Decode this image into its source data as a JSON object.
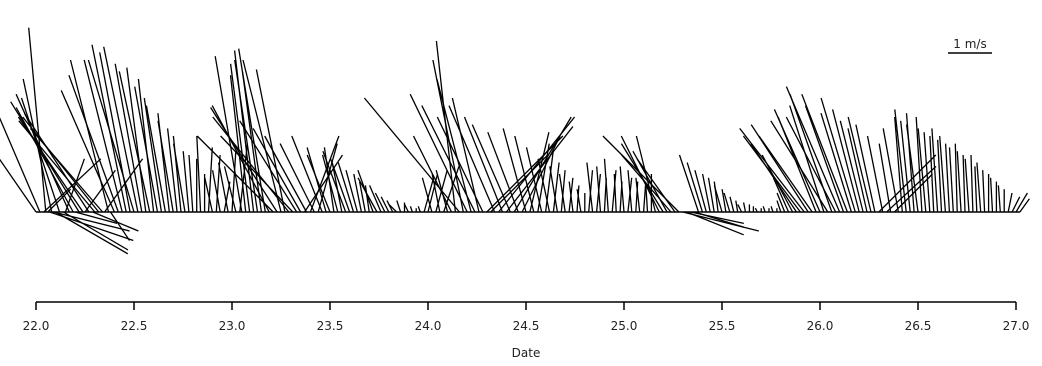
{
  "chart_data": {
    "type": "stick-plot",
    "xlabel": "Date",
    "x_ticks": [
      "22.0",
      "22.5",
      "23.0",
      "23.5",
      "24.0",
      "24.5",
      "25.0",
      "25.5",
      "26.0",
      "26.5",
      "27.0"
    ],
    "xlim": [
      22.0,
      27.05
    ],
    "scale": {
      "label": "1 m/s",
      "value_mps": 1
    },
    "colors": {
      "stick": "#000000",
      "text": "#222222",
      "background": "#ffffff"
    },
    "vectors": [
      {
        "t": 22.0,
        "u": -0.38,
        "v": 0.55
      },
      {
        "t": 22.02,
        "u": -0.3,
        "v": 0.7
      },
      {
        "t": 22.04,
        "u": 0.3,
        "v": 0.28
      },
      {
        "t": 22.05,
        "u": -0.09,
        "v": 0.97
      },
      {
        "t": 22.06,
        "u": 0.12,
        "v": 0.12
      },
      {
        "t": 22.07,
        "u": 0.44,
        "v": -0.15
      },
      {
        "t": 22.08,
        "u": -0.15,
        "v": 0.7
      },
      {
        "t": 22.09,
        "u": 0.4,
        "v": -0.1
      },
      {
        "t": 22.1,
        "u": 0.38,
        "v": -0.22
      },
      {
        "t": 22.12,
        "u": -0.2,
        "v": 0.6
      },
      {
        "t": 22.14,
        "u": 0.34,
        "v": -0.2
      },
      {
        "t": 22.15,
        "u": 0.1,
        "v": 0.28
      },
      {
        "t": 22.17,
        "u": -0.28,
        "v": 0.62
      },
      {
        "t": 22.19,
        "u": -0.3,
        "v": 0.55
      },
      {
        "t": 22.2,
        "u": 0.22,
        "v": -0.06
      },
      {
        "t": 22.22,
        "u": -0.36,
        "v": 0.58
      },
      {
        "t": 22.24,
        "u": -0.34,
        "v": 0.5
      },
      {
        "t": 22.25,
        "u": 0.16,
        "v": 0.22
      },
      {
        "t": 22.27,
        "u": -0.34,
        "v": 0.52
      },
      {
        "t": 22.29,
        "u": 0.24,
        "v": -0.1
      },
      {
        "t": 22.3,
        "u": -0.4,
        "v": 0.48
      },
      {
        "t": 22.32,
        "u": -0.4,
        "v": 0.5
      },
      {
        "t": 22.34,
        "u": -0.38,
        "v": 0.44
      },
      {
        "t": 22.35,
        "u": 0.2,
        "v": 0.28
      },
      {
        "t": 22.37,
        "u": -0.2,
        "v": 0.8
      },
      {
        "t": 22.38,
        "u": 0.1,
        "v": -0.15
      },
      {
        "t": 22.4,
        "u": -0.28,
        "v": 0.64
      },
      {
        "t": 22.42,
        "u": -0.26,
        "v": 0.72
      },
      {
        "t": 22.44,
        "u": -0.2,
        "v": 0.8
      },
      {
        "t": 22.46,
        "u": -0.18,
        "v": 0.88
      },
      {
        "t": 22.48,
        "u": -0.16,
        "v": 0.84
      },
      {
        "t": 22.5,
        "u": -0.24,
        "v": 0.8
      },
      {
        "t": 22.52,
        "u": -0.18,
        "v": 0.87
      },
      {
        "t": 22.54,
        "u": -0.14,
        "v": 0.78
      },
      {
        "t": 22.56,
        "u": -0.1,
        "v": 0.76
      },
      {
        "t": 22.58,
        "u": -0.16,
        "v": 0.74
      },
      {
        "t": 22.6,
        "u": -0.08,
        "v": 0.7
      },
      {
        "t": 22.62,
        "u": -0.12,
        "v": 0.66
      },
      {
        "t": 22.64,
        "u": -0.09,
        "v": 0.6
      },
      {
        "t": 22.66,
        "u": -0.1,
        "v": 0.56
      },
      {
        "t": 22.68,
        "u": -0.06,
        "v": 0.52
      },
      {
        "t": 22.7,
        "u": -0.08,
        "v": 0.48
      },
      {
        "t": 22.72,
        "u": -0.05,
        "v": 0.44
      },
      {
        "t": 22.74,
        "u": -0.04,
        "v": 0.4
      },
      {
        "t": 22.76,
        "u": -0.06,
        "v": 0.36
      },
      {
        "t": 22.78,
        "u": -0.03,
        "v": 0.32
      },
      {
        "t": 22.8,
        "u": -0.02,
        "v": 0.3
      },
      {
        "t": 22.82,
        "u": 0.0,
        "v": 0.28
      },
      {
        "t": 22.84,
        "u": -0.02,
        "v": 0.4
      },
      {
        "t": 22.86,
        "u": 0.0,
        "v": 0.2
      },
      {
        "t": 22.88,
        "u": 0.02,
        "v": 0.34
      },
      {
        "t": 22.9,
        "u": -0.04,
        "v": 0.18
      },
      {
        "t": 22.92,
        "u": 0.02,
        "v": 0.3
      },
      {
        "t": 22.94,
        "u": -0.04,
        "v": 0.22
      },
      {
        "t": 22.96,
        "u": 0.03,
        "v": 0.16
      },
      {
        "t": 22.98,
        "u": -0.05,
        "v": 0.26
      },
      {
        "t": 23.0,
        "u": 0.02,
        "v": 0.32
      },
      {
        "t": 23.02,
        "u": -0.06,
        "v": 0.24
      },
      {
        "t": 23.04,
        "u": 0.04,
        "v": 0.36
      },
      {
        "t": 23.05,
        "u": -0.14,
        "v": 0.82
      },
      {
        "t": 23.07,
        "u": -0.08,
        "v": 0.72
      },
      {
        "t": 23.09,
        "u": -0.1,
        "v": 0.78
      },
      {
        "t": 23.11,
        "u": -0.1,
        "v": 0.85
      },
      {
        "t": 23.13,
        "u": -0.12,
        "v": 0.8
      },
      {
        "t": 23.15,
        "u": -0.1,
        "v": 0.74
      },
      {
        "t": 23.17,
        "u": -0.14,
        "v": 0.86
      },
      {
        "t": 23.19,
        "u": -0.3,
        "v": 0.56
      },
      {
        "t": 23.21,
        "u": -0.4,
        "v": 0.4
      },
      {
        "t": 23.23,
        "u": -0.35,
        "v": 0.55
      },
      {
        "t": 23.25,
        "u": -0.2,
        "v": 0.8
      },
      {
        "t": 23.27,
        "u": -0.15,
        "v": 0.75
      },
      {
        "t": 23.29,
        "u": -0.4,
        "v": 0.5
      },
      {
        "t": 23.31,
        "u": -0.38,
        "v": 0.4
      },
      {
        "t": 23.33,
        "u": -0.3,
        "v": 0.48
      },
      {
        "t": 23.35,
        "u": -0.25,
        "v": 0.44
      },
      {
        "t": 23.37,
        "u": 0.2,
        "v": 0.3
      },
      {
        "t": 23.38,
        "u": -0.22,
        "v": 0.4
      },
      {
        "t": 23.4,
        "u": 0.15,
        "v": 0.4
      },
      {
        "t": 23.42,
        "u": -0.18,
        "v": 0.36
      },
      {
        "t": 23.44,
        "u": 0.1,
        "v": 0.36
      },
      {
        "t": 23.46,
        "u": -0.16,
        "v": 0.4
      },
      {
        "t": 23.48,
        "u": -0.1,
        "v": 0.34
      },
      {
        "t": 23.5,
        "u": -0.12,
        "v": 0.3
      },
      {
        "t": 23.52,
        "u": -0.05,
        "v": 0.34
      },
      {
        "t": 23.54,
        "u": -0.08,
        "v": 0.3
      },
      {
        "t": 23.56,
        "u": -0.05,
        "v": 0.26
      },
      {
        "t": 23.58,
        "u": -0.12,
        "v": 0.32
      },
      {
        "t": 23.6,
        "u": -0.1,
        "v": 0.28
      },
      {
        "t": 23.62,
        "u": -0.08,
        "v": 0.26
      },
      {
        "t": 23.64,
        "u": -0.06,
        "v": 0.22
      },
      {
        "t": 23.66,
        "u": -0.04,
        "v": 0.2
      },
      {
        "t": 23.68,
        "u": -0.03,
        "v": 0.16
      },
      {
        "t": 23.7,
        "u": -0.02,
        "v": 0.14
      },
      {
        "t": 23.72,
        "u": -0.08,
        "v": 0.22
      },
      {
        "t": 23.74,
        "u": -0.1,
        "v": 0.18
      },
      {
        "t": 23.76,
        "u": -0.06,
        "v": 0.14
      },
      {
        "t": 23.78,
        "u": -0.05,
        "v": 0.1
      },
      {
        "t": 23.8,
        "u": -0.04,
        "v": 0.08
      },
      {
        "t": 23.82,
        "u": -0.03,
        "v": 0.06
      },
      {
        "t": 23.84,
        "u": -0.04,
        "v": 0.04
      },
      {
        "t": 23.86,
        "u": -0.02,
        "v": 0.06
      },
      {
        "t": 23.88,
        "u": 0.0,
        "v": 0.05
      },
      {
        "t": 23.9,
        "u": -0.02,
        "v": 0.04
      },
      {
        "t": 23.92,
        "u": -0.01,
        "v": 0.03
      },
      {
        "t": 23.94,
        "u": 0.0,
        "v": 0.02
      },
      {
        "t": 23.96,
        "u": -0.01,
        "v": 0.03
      },
      {
        "t": 23.98,
        "u": 0.05,
        "v": 0.18
      },
      {
        "t": 24.0,
        "u": 0.05,
        "v": 0.2
      },
      {
        "t": 24.02,
        "u": -0.05,
        "v": 0.18
      },
      {
        "t": 24.04,
        "u": 0.06,
        "v": 0.22
      },
      {
        "t": 24.06,
        "u": -0.04,
        "v": 0.2
      },
      {
        "t": 24.08,
        "u": 0.08,
        "v": 0.24
      },
      {
        "t": 24.1,
        "u": -0.06,
        "v": 0.22
      },
      {
        "t": 24.12,
        "u": -0.2,
        "v": 0.4
      },
      {
        "t": 24.14,
        "u": -0.1,
        "v": 0.9
      },
      {
        "t": 24.16,
        "u": -0.5,
        "v": 0.6
      },
      {
        "t": 24.18,
        "u": -0.16,
        "v": 0.8
      },
      {
        "t": 24.2,
        "u": -0.3,
        "v": 0.62
      },
      {
        "t": 24.22,
        "u": -0.18,
        "v": 0.7
      },
      {
        "t": 24.24,
        "u": -0.28,
        "v": 0.56
      },
      {
        "t": 24.26,
        "u": -0.14,
        "v": 0.6
      },
      {
        "t": 24.28,
        "u": -0.24,
        "v": 0.5
      },
      {
        "t": 24.3,
        "u": 0.4,
        "v": 0.4
      },
      {
        "t": 24.32,
        "u": 0.3,
        "v": 0.3
      },
      {
        "t": 24.34,
        "u": -0.24,
        "v": 0.56
      },
      {
        "t": 24.36,
        "u": 0.4,
        "v": 0.5
      },
      {
        "t": 24.38,
        "u": -0.2,
        "v": 0.5
      },
      {
        "t": 24.4,
        "u": 0.35,
        "v": 0.45
      },
      {
        "t": 24.42,
        "u": -0.2,
        "v": 0.46
      },
      {
        "t": 24.44,
        "u": 0.3,
        "v": 0.5
      },
      {
        "t": 24.46,
        "u": -0.16,
        "v": 0.42
      },
      {
        "t": 24.48,
        "u": 0.2,
        "v": 0.4
      },
      {
        "t": 24.5,
        "u": -0.12,
        "v": 0.44
      },
      {
        "t": 24.52,
        "u": 0.1,
        "v": 0.42
      },
      {
        "t": 24.54,
        "u": -0.1,
        "v": 0.4
      },
      {
        "t": 24.56,
        "u": 0.06,
        "v": 0.36
      },
      {
        "t": 24.58,
        "u": -0.08,
        "v": 0.34
      },
      {
        "t": 24.6,
        "u": 0.04,
        "v": 0.32
      },
      {
        "t": 24.62,
        "u": -0.06,
        "v": 0.28
      },
      {
        "t": 24.64,
        "u": 0.03,
        "v": 0.26
      },
      {
        "t": 24.66,
        "u": -0.04,
        "v": 0.24
      },
      {
        "t": 24.68,
        "u": 0.02,
        "v": 0.22
      },
      {
        "t": 24.7,
        "u": -0.03,
        "v": 0.2
      },
      {
        "t": 24.72,
        "u": 0.02,
        "v": 0.18
      },
      {
        "t": 24.74,
        "u": -0.02,
        "v": 0.16
      },
      {
        "t": 24.76,
        "u": 0.01,
        "v": 0.14
      },
      {
        "t": 24.78,
        "u": -0.02,
        "v": 0.12
      },
      {
        "t": 24.8,
        "u": 0.0,
        "v": 0.1
      },
      {
        "t": 24.82,
        "u": 0.02,
        "v": 0.22
      },
      {
        "t": 24.84,
        "u": -0.03,
        "v": 0.26
      },
      {
        "t": 24.86,
        "u": 0.02,
        "v": 0.2
      },
      {
        "t": 24.88,
        "u": -0.02,
        "v": 0.24
      },
      {
        "t": 24.9,
        "u": 0.01,
        "v": 0.18
      },
      {
        "t": 24.92,
        "u": -0.02,
        "v": 0.28
      },
      {
        "t": 24.94,
        "u": 0.02,
        "v": 0.22
      },
      {
        "t": 24.96,
        "u": -0.01,
        "v": 0.2
      },
      {
        "t": 24.98,
        "u": 0.01,
        "v": 0.16
      },
      {
        "t": 25.0,
        "u": -0.02,
        "v": 0.24
      },
      {
        "t": 25.02,
        "u": 0.02,
        "v": 0.18
      },
      {
        "t": 25.04,
        "u": -0.02,
        "v": 0.22
      },
      {
        "t": 25.06,
        "u": 0.01,
        "v": 0.16
      },
      {
        "t": 25.08,
        "u": -0.02,
        "v": 0.18
      },
      {
        "t": 25.1,
        "u": 0.01,
        "v": 0.14
      },
      {
        "t": 25.12,
        "u": -0.01,
        "v": 0.16
      },
      {
        "t": 25.14,
        "u": 0.0,
        "v": 0.2
      },
      {
        "t": 25.16,
        "u": -0.1,
        "v": 0.4
      },
      {
        "t": 25.18,
        "u": -0.2,
        "v": 0.4
      },
      {
        "t": 25.2,
        "u": -0.22,
        "v": 0.36
      },
      {
        "t": 25.22,
        "u": -0.18,
        "v": 0.32
      },
      {
        "t": 25.24,
        "u": -0.26,
        "v": 0.3
      },
      {
        "t": 25.26,
        "u": -0.2,
        "v": 0.28
      },
      {
        "t": 25.28,
        "u": -0.4,
        "v": 0.4
      },
      {
        "t": 25.3,
        "u": 0.4,
        "v": -0.1
      },
      {
        "t": 25.32,
        "u": 0.3,
        "v": -0.12
      },
      {
        "t": 25.34,
        "u": 0.28,
        "v": -0.06
      },
      {
        "t": 25.36,
        "u": 0.26,
        "v": -0.08
      },
      {
        "t": 25.38,
        "u": -0.1,
        "v": 0.3
      },
      {
        "t": 25.4,
        "u": -0.08,
        "v": 0.26
      },
      {
        "t": 25.42,
        "u": -0.06,
        "v": 0.22
      },
      {
        "t": 25.44,
        "u": -0.04,
        "v": 0.2
      },
      {
        "t": 25.46,
        "u": -0.03,
        "v": 0.18
      },
      {
        "t": 25.48,
        "u": -0.02,
        "v": 0.16
      },
      {
        "t": 25.5,
        "u": -0.04,
        "v": 0.14
      },
      {
        "t": 25.52,
        "u": -0.02,
        "v": 0.12
      },
      {
        "t": 25.54,
        "u": -0.03,
        "v": 0.1
      },
      {
        "t": 25.56,
        "u": -0.02,
        "v": 0.08
      },
      {
        "t": 25.58,
        "u": -0.01,
        "v": 0.06
      },
      {
        "t": 25.6,
        "u": -0.02,
        "v": 0.04
      },
      {
        "t": 25.62,
        "u": -0.01,
        "v": 0.05
      },
      {
        "t": 25.64,
        "u": 0.0,
        "v": 0.04
      },
      {
        "t": 25.66,
        "u": 0.0,
        "v": 0.03
      },
      {
        "t": 25.68,
        "u": -0.01,
        "v": 0.02
      },
      {
        "t": 25.7,
        "u": 0.0,
        "v": 0.02
      },
      {
        "t": 25.72,
        "u": -0.01,
        "v": 0.03
      },
      {
        "t": 25.74,
        "u": 0.0,
        "v": 0.02
      },
      {
        "t": 25.76,
        "u": -0.01,
        "v": 0.03
      },
      {
        "t": 25.78,
        "u": 0.0,
        "v": 0.02
      },
      {
        "t": 25.8,
        "u": -0.02,
        "v": 0.06
      },
      {
        "t": 25.82,
        "u": -0.04,
        "v": 0.1
      },
      {
        "t": 25.84,
        "u": -0.08,
        "v": 0.18
      },
      {
        "t": 25.86,
        "u": -0.16,
        "v": 0.3
      },
      {
        "t": 25.88,
        "u": -0.24,
        "v": 0.36
      },
      {
        "t": 25.9,
        "u": -0.3,
        "v": 0.4
      },
      {
        "t": 25.92,
        "u": -0.34,
        "v": 0.44
      },
      {
        "t": 25.94,
        "u": -0.3,
        "v": 0.46
      },
      {
        "t": 25.96,
        "u": -0.28,
        "v": 0.4
      },
      {
        "t": 25.98,
        "u": -0.2,
        "v": 0.5
      },
      {
        "t": 26.0,
        "u": -0.24,
        "v": 0.54
      },
      {
        "t": 26.02,
        "u": -0.18,
        "v": 0.56
      },
      {
        "t": 26.04,
        "u": -0.3,
        "v": 0.48
      },
      {
        "t": 26.06,
        "u": -0.22,
        "v": 0.62
      },
      {
        "t": 26.08,
        "u": -0.26,
        "v": 0.5
      },
      {
        "t": 26.1,
        "u": -0.28,
        "v": 0.66
      },
      {
        "t": 26.12,
        "u": -0.2,
        "v": 0.56
      },
      {
        "t": 26.14,
        "u": -0.24,
        "v": 0.62
      },
      {
        "t": 26.16,
        "u": -0.16,
        "v": 0.52
      },
      {
        "t": 26.18,
        "u": -0.18,
        "v": 0.6
      },
      {
        "t": 26.2,
        "u": -0.14,
        "v": 0.54
      },
      {
        "t": 26.22,
        "u": -0.12,
        "v": 0.48
      },
      {
        "t": 26.24,
        "u": -0.1,
        "v": 0.44
      },
      {
        "t": 26.26,
        "u": -0.12,
        "v": 0.5
      },
      {
        "t": 26.28,
        "u": -0.1,
        "v": 0.46
      },
      {
        "t": 26.3,
        "u": 0.3,
        "v": 0.3
      },
      {
        "t": 26.32,
        "u": -0.08,
        "v": 0.4
      },
      {
        "t": 26.34,
        "u": 0.26,
        "v": 0.24
      },
      {
        "t": 26.36,
        "u": -0.06,
        "v": 0.36
      },
      {
        "t": 26.38,
        "u": 0.2,
        "v": 0.2
      },
      {
        "t": 26.4,
        "u": -0.08,
        "v": 0.44
      },
      {
        "t": 26.42,
        "u": -0.04,
        "v": 0.5
      },
      {
        "t": 26.44,
        "u": -0.06,
        "v": 0.54
      },
      {
        "t": 26.46,
        "u": -0.05,
        "v": 0.48
      },
      {
        "t": 26.48,
        "u": -0.04,
        "v": 0.52
      },
      {
        "t": 26.5,
        "u": -0.06,
        "v": 0.46
      },
      {
        "t": 26.52,
        "u": -0.03,
        "v": 0.5
      },
      {
        "t": 26.54,
        "u": -0.04,
        "v": 0.44
      },
      {
        "t": 26.56,
        "u": -0.03,
        "v": 0.42
      },
      {
        "t": 26.58,
        "u": -0.02,
        "v": 0.4
      },
      {
        "t": 26.6,
        "u": -0.03,
        "v": 0.44
      },
      {
        "t": 26.62,
        "u": -0.02,
        "v": 0.38
      },
      {
        "t": 26.64,
        "u": -0.03,
        "v": 0.4
      },
      {
        "t": 26.66,
        "u": -0.02,
        "v": 0.36
      },
      {
        "t": 26.68,
        "u": -0.02,
        "v": 0.34
      },
      {
        "t": 26.7,
        "u": -0.01,
        "v": 0.36
      },
      {
        "t": 26.72,
        "u": -0.02,
        "v": 0.32
      },
      {
        "t": 26.74,
        "u": -0.01,
        "v": 0.3
      },
      {
        "t": 26.76,
        "u": -0.02,
        "v": 0.28
      },
      {
        "t": 26.78,
        "u": -0.01,
        "v": 0.3
      },
      {
        "t": 26.8,
        "u": -0.01,
        "v": 0.24
      },
      {
        "t": 26.82,
        "u": -0.02,
        "v": 0.26
      },
      {
        "t": 26.84,
        "u": -0.01,
        "v": 0.22
      },
      {
        "t": 26.86,
        "u": 0.0,
        "v": 0.2
      },
      {
        "t": 26.88,
        "u": -0.01,
        "v": 0.18
      },
      {
        "t": 26.9,
        "u": 0.0,
        "v": 0.16
      },
      {
        "t": 26.92,
        "u": -0.01,
        "v": 0.14
      },
      {
        "t": 26.94,
        "u": 0.0,
        "v": 0.12
      },
      {
        "t": 26.96,
        "u": 0.02,
        "v": 0.1
      },
      {
        "t": 26.98,
        "u": 0.04,
        "v": 0.08
      },
      {
        "t": 27.0,
        "u": 0.06,
        "v": 0.1
      },
      {
        "t": 27.02,
        "u": 0.05,
        "v": 0.07
      }
    ]
  }
}
